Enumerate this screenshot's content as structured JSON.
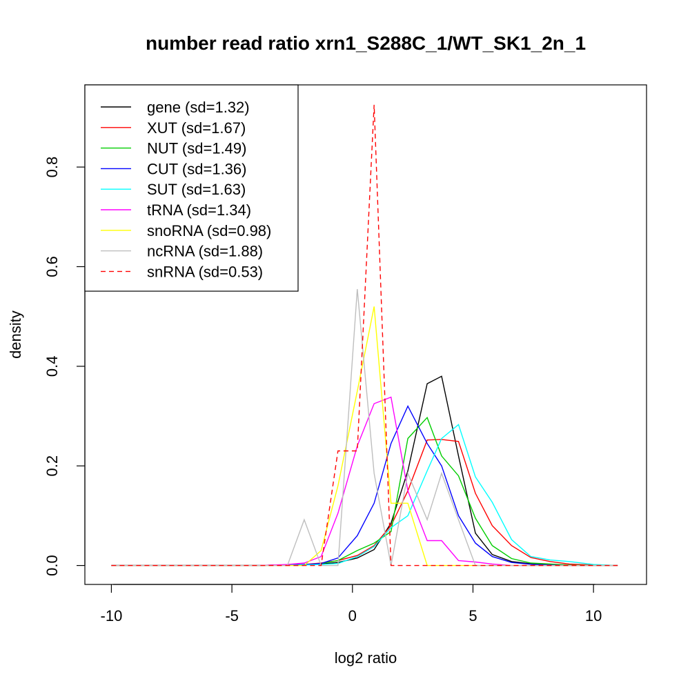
{
  "chart_data": {
    "type": "line",
    "title": "number read ratio xrn1_S288C_1/WT_SK1_2n_1",
    "xlabel": "log2 ratio",
    "ylabel": "density",
    "xlim": [
      -11.1,
      12.2
    ],
    "ylim": [
      -0.038,
      0.965
    ],
    "x_ticks": [
      -10,
      -5,
      0,
      5,
      10
    ],
    "x_tick_labels": [
      "-10",
      "-5",
      "0",
      "5",
      "10"
    ],
    "y_ticks": [
      0.0,
      0.2,
      0.4,
      0.6,
      0.8
    ],
    "y_tick_labels": [
      "0.0",
      "0.2",
      "0.4",
      "0.6",
      "0.8"
    ],
    "grid": false,
    "legend_position": "top-left",
    "series": [
      {
        "name": "gene (sd=1.32)",
        "color": "#000000",
        "dash": false,
        "points": [
          [
            -10,
            0
          ],
          [
            -4,
            0
          ],
          [
            -2,
            0.002
          ],
          [
            -1.3,
            0.003
          ],
          [
            -0.6,
            0.006
          ],
          [
            0.2,
            0.015
          ],
          [
            0.9,
            0.032
          ],
          [
            1.6,
            0.085
          ],
          [
            2.3,
            0.19
          ],
          [
            3.1,
            0.365
          ],
          [
            3.7,
            0.38
          ],
          [
            4.4,
            0.22
          ],
          [
            5.1,
            0.065
          ],
          [
            5.8,
            0.022
          ],
          [
            6.6,
            0.008
          ],
          [
            7.5,
            0.003
          ],
          [
            9,
            0.001
          ],
          [
            11,
            0
          ]
        ]
      },
      {
        "name": "XUT (sd=1.67)",
        "color": "#ff0000",
        "dash": false,
        "points": [
          [
            -10,
            0
          ],
          [
            -4,
            0
          ],
          [
            -2,
            0.002
          ],
          [
            -1.3,
            0.005
          ],
          [
            -0.6,
            0.01
          ],
          [
            0.2,
            0.02
          ],
          [
            0.9,
            0.04
          ],
          [
            1.6,
            0.08
          ],
          [
            2.3,
            0.15
          ],
          [
            3.1,
            0.252
          ],
          [
            3.7,
            0.253
          ],
          [
            4.4,
            0.249
          ],
          [
            5.1,
            0.145
          ],
          [
            5.8,
            0.08
          ],
          [
            6.6,
            0.04
          ],
          [
            7.4,
            0.016
          ],
          [
            8.2,
            0.008
          ],
          [
            9,
            0.003
          ],
          [
            10,
            0.001
          ],
          [
            11,
            0
          ]
        ]
      },
      {
        "name": "NUT (sd=1.49)",
        "color": "#00cd00",
        "dash": false,
        "points": [
          [
            -10,
            0
          ],
          [
            -4,
            0
          ],
          [
            -2,
            0.001
          ],
          [
            -1.3,
            0.004
          ],
          [
            -0.6,
            0.01
          ],
          [
            0.2,
            0.03
          ],
          [
            0.9,
            0.045
          ],
          [
            1.6,
            0.068
          ],
          [
            2.3,
            0.255
          ],
          [
            3.1,
            0.297
          ],
          [
            3.7,
            0.22
          ],
          [
            4.4,
            0.18
          ],
          [
            5.1,
            0.095
          ],
          [
            5.8,
            0.04
          ],
          [
            6.6,
            0.014
          ],
          [
            7.4,
            0.005
          ],
          [
            9,
            0.001
          ],
          [
            11,
            0
          ]
        ]
      },
      {
        "name": "CUT (sd=1.36)",
        "color": "#0000ff",
        "dash": false,
        "points": [
          [
            -10,
            0
          ],
          [
            -4,
            0
          ],
          [
            -2,
            0.002
          ],
          [
            -1.3,
            0.004
          ],
          [
            -0.6,
            0.015
          ],
          [
            0.2,
            0.06
          ],
          [
            0.9,
            0.125
          ],
          [
            1.6,
            0.245
          ],
          [
            2.3,
            0.32
          ],
          [
            3.1,
            0.245
          ],
          [
            3.7,
            0.2
          ],
          [
            4.4,
            0.1
          ],
          [
            5.1,
            0.045
          ],
          [
            5.8,
            0.018
          ],
          [
            6.6,
            0.006
          ],
          [
            7.5,
            0.002
          ],
          [
            9,
            0
          ],
          [
            11,
            0
          ]
        ]
      },
      {
        "name": "SUT (sd=1.63)",
        "color": "#00ffff",
        "dash": false,
        "points": [
          [
            -10,
            0
          ],
          [
            -4,
            0
          ],
          [
            -2,
            0.001
          ],
          [
            -1.3,
            0.002
          ],
          [
            -0.6,
            0.004
          ],
          [
            0.2,
            0.018
          ],
          [
            0.9,
            0.038
          ],
          [
            1.6,
            0.076
          ],
          [
            2.3,
            0.1
          ],
          [
            3.1,
            0.19
          ],
          [
            3.7,
            0.255
          ],
          [
            4.4,
            0.283
          ],
          [
            5.1,
            0.178
          ],
          [
            5.8,
            0.127
          ],
          [
            6.6,
            0.052
          ],
          [
            7.4,
            0.018
          ],
          [
            8.2,
            0.011
          ],
          [
            9,
            0.008
          ],
          [
            10,
            0.002
          ],
          [
            11,
            0
          ]
        ]
      },
      {
        "name": "tRNA (sd=1.34)",
        "color": "#ff00ff",
        "dash": false,
        "points": [
          [
            -10,
            0
          ],
          [
            -4,
            0
          ],
          [
            -2.7,
            0.002
          ],
          [
            -2,
            0.005
          ],
          [
            -1.3,
            0.018
          ],
          [
            -0.6,
            0.105
          ],
          [
            0.2,
            0.24
          ],
          [
            0.9,
            0.325
          ],
          [
            1.6,
            0.338
          ],
          [
            2.3,
            0.15
          ],
          [
            3.1,
            0.05
          ],
          [
            3.7,
            0.05
          ],
          [
            4.4,
            0.01
          ],
          [
            5.1,
            0.007
          ],
          [
            5.8,
            0.003
          ],
          [
            6.6,
            0
          ],
          [
            11,
            0
          ]
        ]
      },
      {
        "name": "snoRNA (sd=0.98)",
        "color": "#ffff00",
        "dash": false,
        "points": [
          [
            -10,
            0
          ],
          [
            -2,
            0
          ],
          [
            -1.3,
            0.03
          ],
          [
            -0.6,
            0.16
          ],
          [
            0.2,
            0.35
          ],
          [
            0.9,
            0.52
          ],
          [
            1.6,
            0.125
          ],
          [
            2.3,
            0.125
          ],
          [
            3.1,
            0
          ],
          [
            11,
            0
          ]
        ]
      },
      {
        "name": "ncRNA (sd=1.88)",
        "color": "#bebebe",
        "dash": false,
        "points": [
          [
            -10,
            0
          ],
          [
            -2.7,
            0
          ],
          [
            -2,
            0.092
          ],
          [
            -1.3,
            0
          ],
          [
            -0.6,
            0
          ],
          [
            0.2,
            0.555
          ],
          [
            0.9,
            0.185
          ],
          [
            1.6,
            0
          ],
          [
            2.3,
            0.185
          ],
          [
            3.1,
            0.092
          ],
          [
            3.7,
            0.185
          ],
          [
            4.4,
            0.092
          ],
          [
            5.1,
            0
          ],
          [
            11,
            0
          ]
        ]
      },
      {
        "name": "snRNA (sd=0.53)",
        "color": "#ff0000",
        "dash": true,
        "points": [
          [
            -10,
            0
          ],
          [
            -1.3,
            0
          ],
          [
            -0.6,
            0.23
          ],
          [
            0.2,
            0.23
          ],
          [
            0.9,
            0.925
          ],
          [
            1.6,
            0
          ],
          [
            11,
            0
          ]
        ]
      }
    ]
  }
}
